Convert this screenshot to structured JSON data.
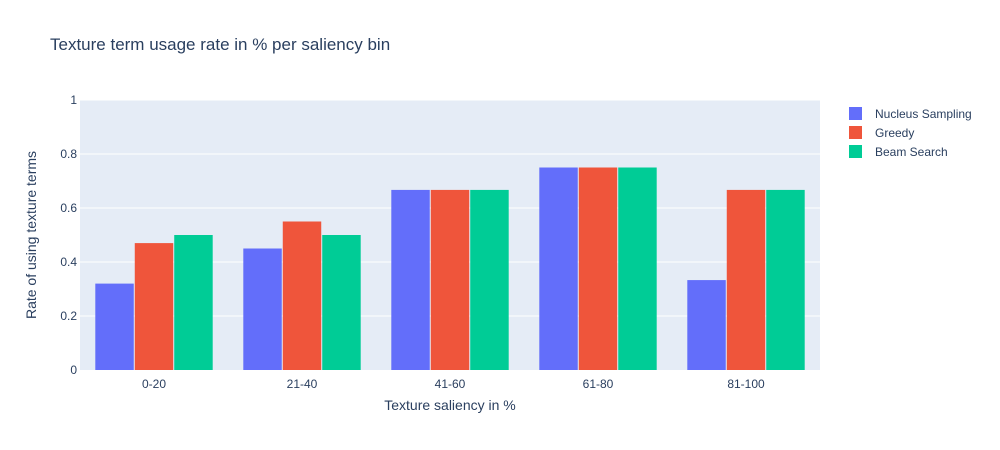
{
  "chart_data": {
    "type": "bar",
    "title": "Texture term usage rate in % per saliency bin",
    "xlabel": "Texture saliency in %",
    "ylabel": "Rate of using texture terms",
    "categories": [
      "0-20",
      "21-40",
      "41-60",
      "61-80",
      "81-100"
    ],
    "ylim": [
      0,
      1
    ],
    "yticks": [
      0,
      0.2,
      0.4,
      0.6,
      0.8,
      1
    ],
    "ytick_labels": [
      "0",
      "0.2",
      "0.4",
      "0.6",
      "0.8",
      "1"
    ],
    "grid": true,
    "legend_position": "top-right",
    "series": [
      {
        "name": "Nucleus Sampling",
        "color": "#636efa",
        "values": [
          0.32,
          0.45,
          0.667,
          0.75,
          0.333
        ]
      },
      {
        "name": "Greedy",
        "color": "#ef553b",
        "values": [
          0.47,
          0.55,
          0.667,
          0.75,
          0.667
        ]
      },
      {
        "name": "Beam Search",
        "color": "#00cc96",
        "values": [
          0.5,
          0.5,
          0.667,
          0.75,
          0.667
        ]
      }
    ]
  }
}
